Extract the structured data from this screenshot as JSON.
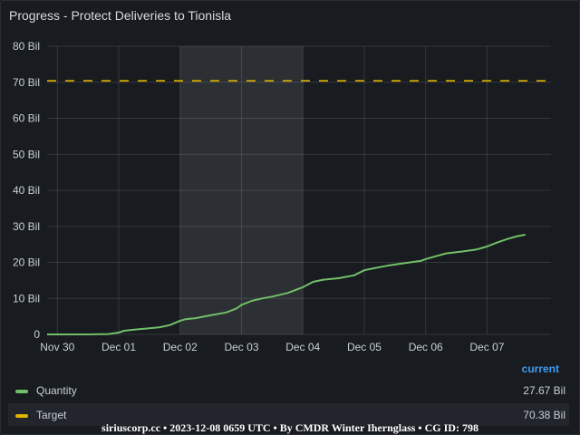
{
  "panel": {
    "title": "Progress - Protect Deliveries to Tionisla"
  },
  "chart_data": {
    "type": "line",
    "title": "Progress - Protect Deliveries to Tionisla",
    "xlabel": "",
    "ylabel": "",
    "x_ticks": [
      "Nov 30",
      "Dec 01",
      "Dec 02",
      "Dec 03",
      "Dec 04",
      "Dec 05",
      "Dec 06",
      "Dec 07"
    ],
    "y_ticks": [
      "0",
      "10 Bil",
      "20 Bil",
      "30 Bil",
      "40 Bil",
      "50 Bil",
      "60 Bil",
      "70 Bil",
      "80 Bil"
    ],
    "ylim": [
      0,
      80
    ],
    "y_unit": "Bil",
    "xlim": [
      "2023-11-29T20:00",
      "2023-12-08T01:00"
    ],
    "highlighted_range": [
      "2023-12-02T00:00",
      "2023-12-04T00:00"
    ],
    "grid": true,
    "legend_position": "bottom",
    "series": [
      {
        "name": "Quantity",
        "color": "#73bf69",
        "style": "solid",
        "points": [
          [
            "2023-11-29T20:00",
            0.0
          ],
          [
            "2023-11-30T12:00",
            0.0
          ],
          [
            "2023-11-30T20:00",
            0.1
          ],
          [
            "2023-12-01T00:00",
            0.5
          ],
          [
            "2023-12-01T02:00",
            1.0
          ],
          [
            "2023-12-01T06:00",
            1.3
          ],
          [
            "2023-12-01T12:00",
            1.7
          ],
          [
            "2023-12-01T16:00",
            2.0
          ],
          [
            "2023-12-01T20:00",
            2.6
          ],
          [
            "2023-12-02T00:00",
            3.8
          ],
          [
            "2023-12-02T02:00",
            4.2
          ],
          [
            "2023-12-02T06:00",
            4.5
          ],
          [
            "2023-12-02T12:00",
            5.3
          ],
          [
            "2023-12-02T18:00",
            6.1
          ],
          [
            "2023-12-02T22:00",
            7.2
          ],
          [
            "2023-12-03T00:00",
            8.2
          ],
          [
            "2023-12-03T04:00",
            9.3
          ],
          [
            "2023-12-03T08:00",
            10.0
          ],
          [
            "2023-12-03T12:00",
            10.5
          ],
          [
            "2023-12-03T18:00",
            11.5
          ],
          [
            "2023-12-04T00:00",
            13.1
          ],
          [
            "2023-12-04T04:00",
            14.6
          ],
          [
            "2023-12-04T08:00",
            15.2
          ],
          [
            "2023-12-04T14:00",
            15.6
          ],
          [
            "2023-12-04T20:00",
            16.4
          ],
          [
            "2023-12-05T00:00",
            17.8
          ],
          [
            "2023-12-05T04:00",
            18.4
          ],
          [
            "2023-12-05T10:00",
            19.2
          ],
          [
            "2023-12-05T16:00",
            19.8
          ],
          [
            "2023-12-05T22:00",
            20.4
          ],
          [
            "2023-12-06T00:00",
            20.9
          ],
          [
            "2023-12-06T04:00",
            21.7
          ],
          [
            "2023-12-06T08:00",
            22.5
          ],
          [
            "2023-12-06T14:00",
            23.0
          ],
          [
            "2023-12-06T20:00",
            23.6
          ],
          [
            "2023-12-07T00:00",
            24.4
          ],
          [
            "2023-12-07T04:00",
            25.5
          ],
          [
            "2023-12-07T08:00",
            26.5
          ],
          [
            "2023-12-07T12:00",
            27.3
          ],
          [
            "2023-12-07T15:00",
            27.67
          ]
        ]
      },
      {
        "name": "Target",
        "color": "#e0b400",
        "style": "dashed",
        "points": [
          [
            "2023-11-29T20:00",
            70.38
          ],
          [
            "2023-12-08T01:00",
            70.38
          ]
        ]
      }
    ]
  },
  "legend": {
    "header": "current",
    "rows": [
      {
        "name": "Quantity",
        "value": "27.67 Bil",
        "color": "#73bf69"
      },
      {
        "name": "Target",
        "value": "70.38 Bil",
        "color": "#e0b400"
      }
    ]
  },
  "footer": {
    "watermark": "siriuscorp.cc • 2023-12-08 0659 UTC • By CMDR Winter Ihernglass • CG ID: 798"
  }
}
